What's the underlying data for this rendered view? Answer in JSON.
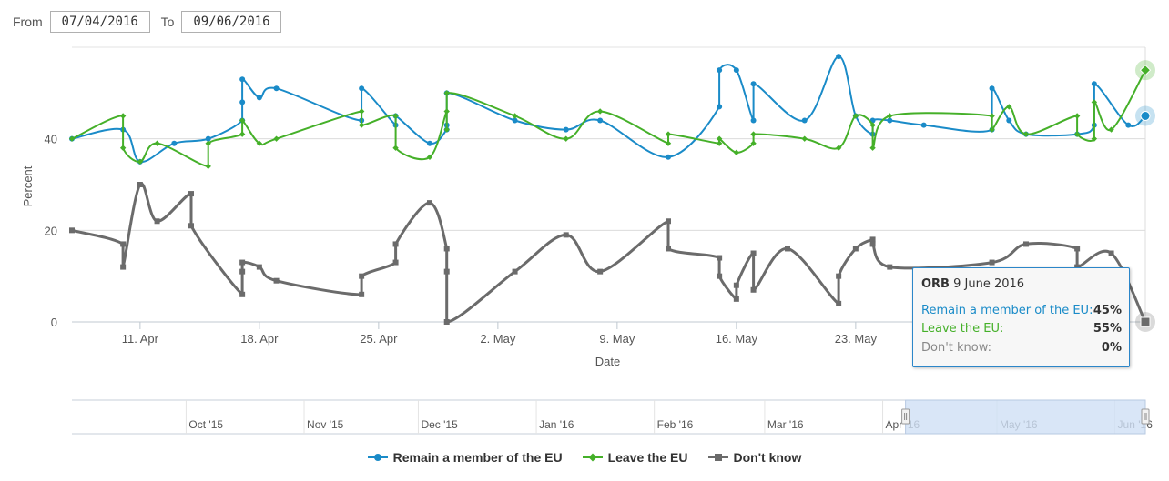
{
  "range": {
    "from_label": "From",
    "from_value": "07/04/2016",
    "to_label": "To",
    "to_value": "09/06/2016"
  },
  "colors": {
    "remain": "#1a8bc8",
    "leave": "#45b029",
    "dontknow": "#6b6b6b",
    "navigator_mask": "#cfe0f5"
  },
  "chart_data": {
    "type": "line",
    "xlabel": "Date",
    "ylabel": "Percent",
    "y_ticks": [
      "0",
      "20",
      "40"
    ],
    "ylim": [
      0,
      60
    ],
    "x_ticks": [
      "11. Apr",
      "18. Apr",
      "25. Apr",
      "2. May",
      "9. May",
      "16. May",
      "23. May"
    ],
    "x_range": [
      "2016-04-07",
      "2016-06-09"
    ],
    "grid": "horizontal",
    "legend_position": "bottom-center",
    "series": [
      {
        "name": "Remain a member of the EU",
        "color": "#1a8bc8",
        "marker": "circle",
        "x": [
          "04-07",
          "04-10",
          "04-11",
          "04-13",
          "04-15",
          "04-17",
          "04-17",
          "04-17",
          "04-18",
          "04-19",
          "04-24",
          "04-24",
          "04-26",
          "04-26",
          "04-28",
          "04-29",
          "04-29",
          "04-29",
          "05-03",
          "05-06",
          "05-08",
          "05-12",
          "05-15",
          "05-15",
          "05-16",
          "05-17",
          "05-17",
          "05-20",
          "05-22",
          "05-23",
          "05-24",
          "05-24",
          "05-25",
          "05-27",
          "05-31",
          "05-31",
          "06-01",
          "06-02",
          "06-05",
          "06-06",
          "06-06",
          "06-08",
          "06-09"
        ],
        "values": [
          40,
          42,
          35,
          39,
          40,
          44,
          48,
          53,
          49,
          51,
          44,
          51,
          43,
          45,
          39,
          42,
          43,
          50,
          44,
          42,
          44,
          36,
          47,
          55,
          55,
          44,
          52,
          44,
          58,
          45,
          41,
          44,
          44,
          43,
          42,
          51,
          44,
          41,
          41,
          43,
          52,
          43,
          45
        ]
      },
      {
        "name": "Leave the EU",
        "color": "#45b029",
        "marker": "diamond",
        "x": [
          "04-07",
          "04-10",
          "04-10",
          "04-11",
          "04-12",
          "04-15",
          "04-15",
          "04-17",
          "04-17",
          "04-18",
          "04-19",
          "04-24",
          "04-24",
          "04-26",
          "04-26",
          "04-28",
          "04-29",
          "04-29",
          "04-29",
          "05-03",
          "05-06",
          "05-08",
          "05-12",
          "05-12",
          "05-15",
          "05-15",
          "05-16",
          "05-17",
          "05-17",
          "05-20",
          "05-22",
          "05-23",
          "05-24",
          "05-24",
          "05-25",
          "05-31",
          "05-31",
          "06-01",
          "06-02",
          "06-05",
          "06-05",
          "06-06",
          "06-06",
          "06-07",
          "06-09"
        ],
        "values": [
          40,
          45,
          38,
          35,
          39,
          34,
          39,
          41,
          44,
          39,
          40,
          46,
          43,
          45,
          38,
          36,
          46,
          42,
          50,
          45,
          40,
          46,
          39,
          41,
          39,
          40,
          37,
          39,
          41,
          40,
          38,
          45,
          43,
          38,
          45,
          45,
          42,
          47,
          41,
          45,
          41,
          40,
          48,
          42,
          55
        ]
      },
      {
        "name": "Don't know",
        "color": "#6b6b6b",
        "marker": "square",
        "x": [
          "04-07",
          "04-10",
          "04-10",
          "04-11",
          "04-12",
          "04-14",
          "04-14",
          "04-17",
          "04-17",
          "04-17",
          "04-18",
          "04-19",
          "04-24",
          "04-24",
          "04-26",
          "04-26",
          "04-28",
          "04-29",
          "04-29",
          "04-29",
          "05-03",
          "05-06",
          "05-08",
          "05-12",
          "05-12",
          "05-15",
          "05-15",
          "05-16",
          "05-16",
          "05-17",
          "05-17",
          "05-19",
          "05-22",
          "05-22",
          "05-23",
          "05-24",
          "05-24",
          "05-25",
          "05-31",
          "06-02",
          "06-05",
          "06-05",
          "06-07",
          "06-09"
        ],
        "values": [
          20,
          17,
          12,
          30,
          22,
          28,
          21,
          6,
          11,
          13,
          12,
          9,
          6,
          10,
          13,
          17,
          26,
          16,
          11,
          0,
          11,
          19,
          11,
          22,
          16,
          14,
          10,
          5,
          8,
          15,
          7,
          16,
          4,
          10,
          16,
          18,
          17,
          12,
          13,
          17,
          16,
          12,
          15,
          0
        ]
      }
    ]
  },
  "navigator": {
    "ticks": [
      "Oct '15",
      "Nov '15",
      "Dec '15",
      "Jan '16",
      "Feb '16",
      "Mar '16",
      "Apr '16",
      "May '16",
      "Jun '16"
    ]
  },
  "tooltip": {
    "pollster": "ORB",
    "date": "9 June 2016",
    "rows": [
      {
        "label": "Remain a member of the EU:",
        "value": "45%"
      },
      {
        "label": "Leave the EU:",
        "value": "55%"
      },
      {
        "label": "Don't know:",
        "value": "0%"
      }
    ]
  },
  "legend": [
    "Remain a member of the EU",
    "Leave the EU",
    "Don't know"
  ]
}
